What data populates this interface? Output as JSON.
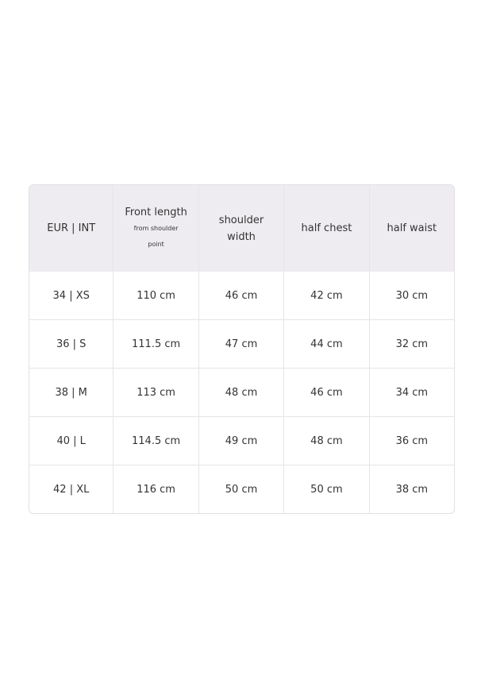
{
  "table": {
    "headers": [
      {
        "main": "EUR | INT",
        "sub": ""
      },
      {
        "main": "Front length",
        "sub": "from shoulder point"
      },
      {
        "main": "shoulder width",
        "sub": ""
      },
      {
        "main": "half chest",
        "sub": ""
      },
      {
        "main": "half waist",
        "sub": ""
      }
    ],
    "rows": [
      [
        "34 | XS",
        "110 cm",
        "46 cm",
        "42 cm",
        "30 cm"
      ],
      [
        "36 | S",
        "111.5 cm",
        "47 cm",
        "44 cm",
        "32 cm"
      ],
      [
        "38 | M",
        "113 cm",
        "48 cm",
        "46 cm",
        "34 cm"
      ],
      [
        "40 | L",
        "114.5 cm",
        "49 cm",
        "48 cm",
        "36 cm"
      ],
      [
        "42 | XL",
        "116 cm",
        "50 cm",
        "50 cm",
        "38 cm"
      ]
    ]
  },
  "colors": {
    "header_bg": "#efecf1",
    "border": "#e6e4e8",
    "text": "#333333"
  }
}
